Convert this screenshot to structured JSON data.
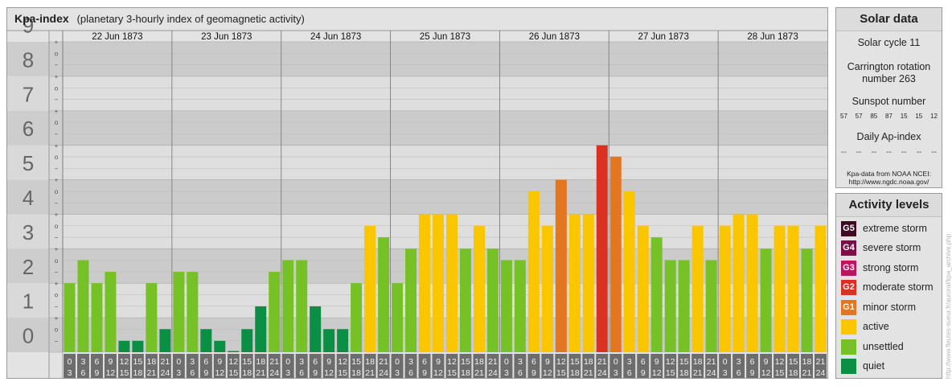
{
  "title": {
    "main": "Kpa-index",
    "subtitle": "(planetary 3-hourly index of geomagnetic activity)"
  },
  "chart_data": {
    "type": "bar",
    "ylim": [
      0,
      9
    ],
    "y_tick_labels": [
      "0",
      "1",
      "2",
      "3",
      "4",
      "5",
      "6",
      "7",
      "8",
      "9"
    ],
    "sub_tick_labels": [
      "+",
      "o",
      "−"
    ],
    "days": [
      "22 Jun 1873",
      "23 Jun 1873",
      "24 Jun 1873",
      "25 Jun 1873",
      "26 Jun 1873",
      "27 Jun 1873",
      "28 Jun 1873"
    ],
    "interval_top": [
      "0",
      "3",
      "6",
      "9",
      "12",
      "15",
      "18",
      "21"
    ],
    "interval_bottom": [
      "3",
      "6",
      "9",
      "12",
      "15",
      "18",
      "21",
      "24"
    ],
    "values": [
      [
        2.0,
        2.67,
        2.0,
        2.33,
        0.33,
        0.33,
        2.0,
        0.67
      ],
      [
        2.33,
        2.33,
        0.67,
        0.33,
        0.0,
        0.67,
        1.33,
        2.33
      ],
      [
        2.67,
        2.67,
        1.33,
        0.67,
        0.67,
        2.0,
        3.67,
        3.33
      ],
      [
        2.0,
        3.0,
        4.0,
        4.0,
        4.0,
        3.0,
        3.67,
        3.0
      ],
      [
        2.67,
        2.67,
        4.67,
        3.67,
        5.0,
        4.0,
        4.0,
        6.0
      ],
      [
        5.67,
        4.67,
        3.67,
        3.33,
        2.67,
        2.67,
        3.67,
        2.67
      ],
      [
        3.67,
        4.0,
        4.0,
        3.0,
        3.67,
        3.67,
        3.0,
        3.67
      ]
    ]
  },
  "solar": {
    "title": "Solar data",
    "cycle": "Solar cycle 11",
    "carrington_line1": "Carrington rotation",
    "carrington_line2": "number 263",
    "sunspot_label": "Sunspot number",
    "sunspot_values": [
      "57",
      "57",
      "85",
      "87",
      "15",
      "15",
      "12"
    ],
    "ap_label": "Daily Ap-index",
    "ap_values": [
      "--",
      "--",
      "--",
      "--",
      "--",
      "--",
      "--"
    ],
    "source_line1": "Kpa-data from NOAA NCEI:",
    "source_line2": "http://www.ngdc.noaa.gov/"
  },
  "levels": {
    "title": "Activity levels",
    "items": [
      {
        "code": "G5",
        "label": "extreme storm",
        "color": "#3d0a22"
      },
      {
        "code": "G4",
        "label": "severe storm",
        "color": "#7c1046"
      },
      {
        "code": "G3",
        "label": "strong storm",
        "color": "#bb155f"
      },
      {
        "code": "G2",
        "label": "moderate storm",
        "color": "#d93222"
      },
      {
        "code": "G1",
        "label": "minor storm",
        "color": "#e47521"
      },
      {
        "code": "",
        "label": "active",
        "color": "#f9c600"
      },
      {
        "code": "",
        "label": "unsettled",
        "color": "#76c226"
      },
      {
        "code": "",
        "label": "quiet",
        "color": "#0a8f44"
      }
    ]
  },
  "credit": "http://www.fleutes-sueur.fr/auroral/kpa_archive.php"
}
